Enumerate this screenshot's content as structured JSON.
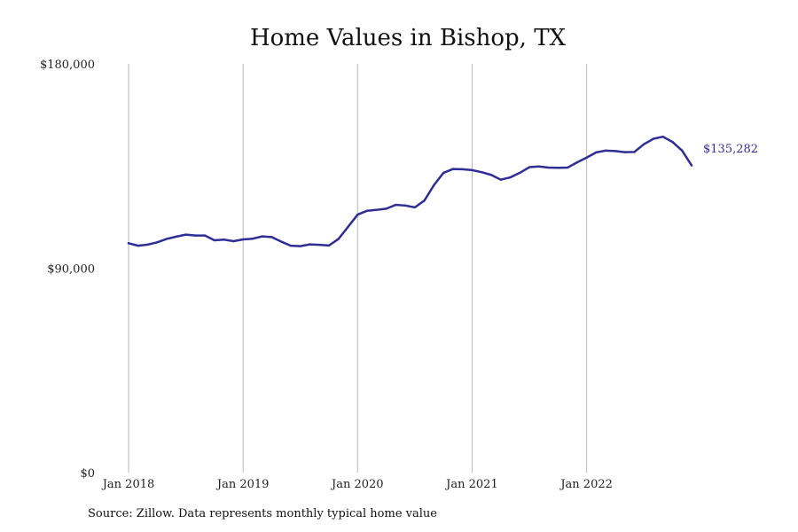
{
  "chart_data": {
    "type": "line",
    "title": "Home Values in Bishop, TX",
    "xlabel": "",
    "ylabel": "",
    "ylim": [
      0,
      180000
    ],
    "xlim": [
      "2018-01",
      "2022-12"
    ],
    "yticks": [
      0,
      90000,
      180000
    ],
    "ytick_labels": [
      "$0",
      "$90,000",
      "$180,000"
    ],
    "xticks": [
      "2018-01",
      "2019-01",
      "2020-01",
      "2021-01",
      "2022-01"
    ],
    "xtick_labels": [
      "Jan 2018",
      "Jan 2019",
      "Jan 2020",
      "Jan 2021",
      "Jan 2022"
    ],
    "grid": "vertical",
    "line_color": "#2e2e96",
    "end_label": "$135,282",
    "series": [
      {
        "x": [
          "2018-01",
          "2018-02",
          "2018-03",
          "2018-04",
          "2018-05",
          "2018-06",
          "2018-07",
          "2018-08",
          "2018-09",
          "2018-10",
          "2018-11",
          "2018-12",
          "2019-01",
          "2019-02",
          "2019-03",
          "2019-04",
          "2019-05",
          "2019-06",
          "2019-07",
          "2019-08",
          "2019-09",
          "2019-10",
          "2019-11",
          "2019-12",
          "2020-01",
          "2020-02",
          "2020-03",
          "2020-04",
          "2020-05",
          "2020-06",
          "2020-07",
          "2020-08",
          "2020-09",
          "2020-10",
          "2020-11",
          "2020-12",
          "2021-01",
          "2021-02",
          "2021-03",
          "2021-04",
          "2021-05",
          "2021-06",
          "2021-07",
          "2021-08",
          "2021-09",
          "2021-10",
          "2021-11",
          "2021-12",
          "2022-01",
          "2022-02",
          "2022-03",
          "2022-04",
          "2022-05",
          "2022-06",
          "2022-07",
          "2022-08",
          "2022-09",
          "2022-10",
          "2022-11",
          "2022-12"
        ],
        "values": [
          101000,
          99900,
          100400,
          101400,
          102900,
          103900,
          104800,
          104400,
          104400,
          102300,
          102600,
          101900,
          102700,
          103000,
          104000,
          103700,
          101700,
          99900,
          99700,
          100500,
          100300,
          100000,
          102900,
          108200,
          113600,
          115300,
          115700,
          116200,
          117900,
          117600,
          116800,
          119800,
          126600,
          132000,
          133700,
          133600,
          133200,
          132300,
          131100,
          129000,
          130000,
          132000,
          134500,
          134800,
          134300,
          134200,
          134300,
          136600,
          138700,
          141000,
          141800,
          141600,
          141100,
          141200,
          144600,
          147000,
          147900,
          145600,
          141800,
          135282
        ]
      }
    ]
  },
  "source_text": "Source: Zillow. Data represents monthly typical home value"
}
